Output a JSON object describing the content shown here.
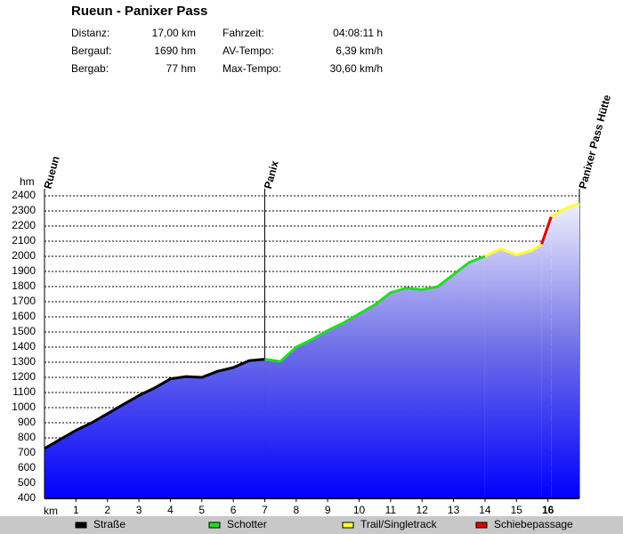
{
  "header": {
    "title": "Rueun - Panixer Pass",
    "stats": [
      [
        "Distanz:",
        "17,00 km",
        "Fahrzeit:",
        "04:08:11 h"
      ],
      [
        "Bergauf:",
        "1690 hm",
        "AV-Tempo:",
        "6,39 km/h"
      ],
      [
        "Bergab:",
        "77 hm",
        "Max-Tempo:",
        "30,60 km/h"
      ]
    ]
  },
  "chart_data": {
    "type": "line",
    "y_label": "hm",
    "x_label": "km",
    "x": [
      0,
      0.5,
      1,
      1.5,
      2,
      2.5,
      3,
      3.5,
      4,
      4.5,
      5,
      5.5,
      6,
      6.5,
      7,
      7.5,
      8,
      8.5,
      9,
      9.5,
      10,
      10.5,
      11,
      11.5,
      12,
      12.5,
      13,
      13.5,
      14,
      14.5,
      15,
      15.5,
      15.8,
      16,
      16.1,
      16.5,
      17
    ],
    "series": [
      {
        "name": "Straße",
        "color": "#000000",
        "values": [
          730,
          790,
          850,
          900,
          960,
          1020,
          1080,
          1130,
          1190,
          1205,
          1200,
          1240,
          1265,
          1310,
          1320,
          null,
          null,
          null,
          null,
          null,
          null,
          null,
          null,
          null,
          null,
          null,
          null,
          null,
          null,
          null,
          null,
          null,
          null,
          null,
          null,
          null,
          null
        ]
      },
      {
        "name": "Schotter",
        "color": "#22dd22",
        "values": [
          null,
          null,
          null,
          null,
          null,
          null,
          null,
          null,
          null,
          null,
          null,
          null,
          null,
          null,
          1320,
          1305,
          1400,
          1450,
          1510,
          1560,
          1620,
          1680,
          1760,
          1790,
          1780,
          1800,
          1880,
          1960,
          2000,
          null,
          null,
          null,
          null,
          null,
          null,
          null,
          null
        ]
      },
      {
        "name": "Trail/Singletrack",
        "color": "#ffff33",
        "values": [
          null,
          null,
          null,
          null,
          null,
          null,
          null,
          null,
          null,
          null,
          null,
          null,
          null,
          null,
          null,
          null,
          null,
          null,
          null,
          null,
          null,
          null,
          null,
          null,
          null,
          null,
          null,
          null,
          2000,
          2050,
          2010,
          2040,
          2080,
          null,
          2260,
          2310,
          2350
        ]
      },
      {
        "name": "Schiebepassage",
        "color": "#dd0000",
        "values": [
          null,
          null,
          null,
          null,
          null,
          null,
          null,
          null,
          null,
          null,
          null,
          null,
          null,
          null,
          null,
          null,
          null,
          null,
          null,
          null,
          null,
          null,
          null,
          null,
          null,
          null,
          null,
          null,
          null,
          null,
          null,
          null,
          2080,
          2200,
          2260,
          null,
          null
        ]
      }
    ],
    "waypoints": [
      {
        "label": "Rueun",
        "x": 0
      },
      {
        "label": "Panix",
        "x": 7
      },
      {
        "label": "Panixer Pass Hütte",
        "x": 17
      }
    ],
    "xlim": [
      0,
      17
    ],
    "ylim": [
      400,
      2400
    ],
    "xticks": [
      1,
      2,
      3,
      4,
      5,
      6,
      7,
      8,
      9,
      10,
      11,
      12,
      13,
      14,
      15,
      16
    ],
    "yticks": [
      400,
      500,
      600,
      700,
      800,
      900,
      1000,
      1100,
      1200,
      1300,
      1400,
      1500,
      1600,
      1700,
      1800,
      1900,
      2000,
      2100,
      2200,
      2300,
      2400
    ],
    "grid": true
  }
}
